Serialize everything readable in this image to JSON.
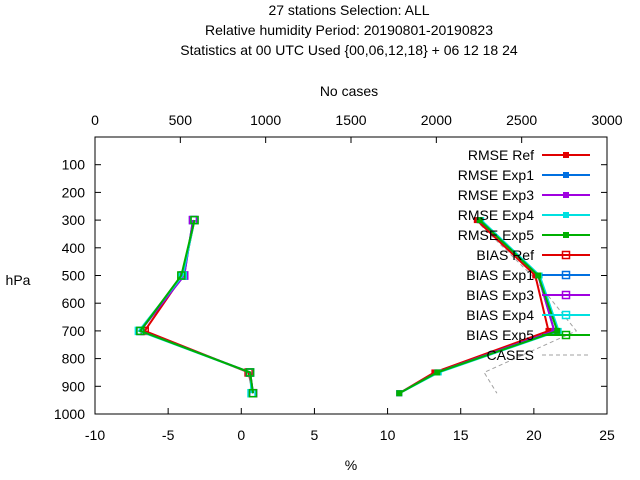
{
  "chart_data": {
    "type": "line",
    "title_lines": [
      "27 stations Selection: ALL",
      "Relative humidity  Period: 20190801-20190823",
      "Statistics at 00 UTC  Used {00,06,12,18} + 06 12 18 24"
    ],
    "xlabel": "%",
    "ylabel": "hPa",
    "x2label": "No cases",
    "xlim": [
      -10,
      25
    ],
    "ylim": [
      1000,
      0
    ],
    "x2lim": [
      0,
      3000
    ],
    "xticks": [
      -10,
      -5,
      0,
      5,
      10,
      15,
      20,
      25
    ],
    "yticks": [
      100,
      200,
      300,
      400,
      500,
      600,
      700,
      800,
      900,
      1000
    ],
    "x2ticks": [
      0,
      500,
      1000,
      1500,
      2000,
      2500,
      3000
    ],
    "grid": false,
    "legend_position": "top-right",
    "levels": [
      300,
      500,
      700,
      850,
      925
    ],
    "series": [
      {
        "name": "RMSE Ref",
        "stat": "rmse",
        "color": "#e00000",
        "values": [
          16.1,
          20.1,
          21.0,
          13.2,
          10.8
        ]
      },
      {
        "name": "RMSE Exp1",
        "stat": "rmse",
        "color": "#0070e0",
        "values": [
          16.3,
          20.3,
          21.4,
          13.4,
          10.8
        ]
      },
      {
        "name": "RMSE Exp3",
        "stat": "rmse",
        "color": "#a000e0",
        "values": [
          16.3,
          20.3,
          21.4,
          13.4,
          10.8
        ]
      },
      {
        "name": "RMSE Exp4",
        "stat": "rmse",
        "color": "#00e0e0",
        "values": [
          16.4,
          20.4,
          21.7,
          13.5,
          10.8
        ]
      },
      {
        "name": "RMSE Exp5",
        "stat": "rmse",
        "color": "#00b000",
        "values": [
          16.3,
          20.3,
          21.6,
          13.4,
          10.8
        ]
      },
      {
        "name": "BIAS Ref",
        "stat": "bias",
        "color": "#e00000",
        "values": [
          -3.2,
          -4.0,
          -6.6,
          0.5,
          0.8
        ]
      },
      {
        "name": "BIAS Exp1",
        "stat": "bias",
        "color": "#0070e0",
        "values": [
          -3.3,
          -3.9,
          -6.9,
          0.6,
          0.8
        ]
      },
      {
        "name": "BIAS Exp3",
        "stat": "bias",
        "color": "#a000e0",
        "values": [
          -3.3,
          -3.9,
          -6.9,
          0.6,
          0.8
        ]
      },
      {
        "name": "BIAS Exp4",
        "stat": "bias",
        "color": "#00e0e0",
        "values": [
          -3.2,
          -4.0,
          -7.0,
          0.6,
          0.7
        ]
      },
      {
        "name": "BIAS Exp5",
        "stat": "bias",
        "color": "#00b000",
        "values": [
          -3.2,
          -4.1,
          -6.9,
          0.6,
          0.8
        ]
      }
    ],
    "cases": {
      "name": "CASES",
      "color": "#a0a0a0",
      "values": [
        2230,
        2560,
        2820,
        2280,
        2355
      ]
    }
  }
}
